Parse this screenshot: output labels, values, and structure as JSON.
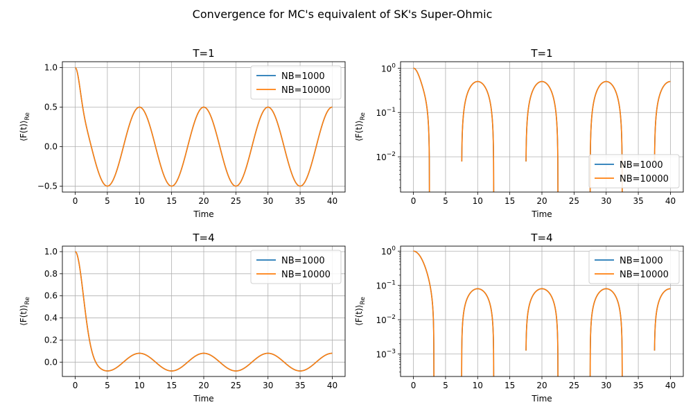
{
  "figure": {
    "suptitle": "Convergence for MC's equivalent of SK's Super-Ohmic"
  },
  "colors": {
    "nb1000": "#1f77b4",
    "nb10000": "#ff7f0e",
    "grid": "#b0b0b0"
  },
  "chart_data": [
    {
      "type": "line",
      "title": "T=1",
      "xlabel": "Time",
      "ylabel": "⟨F(t)⟩_Re",
      "yscale": "linear",
      "xlim": [
        -2,
        42
      ],
      "ylim": [
        -0.575,
        1.075
      ],
      "xticks": [
        0,
        5,
        10,
        15,
        20,
        25,
        30,
        35,
        40
      ],
      "yticks": [
        -0.5,
        0.0,
        0.5,
        1.0
      ],
      "ytick_labels": [
        "−0.5",
        "0.0",
        "0.5",
        "1.0"
      ],
      "grid": true,
      "legend": "top-right",
      "curve": {
        "amplitude": 0.5,
        "baseline": 0.0,
        "decay": 4,
        "period": 10,
        "xmax": 40
      },
      "series": [
        {
          "name": "NB=1000"
        },
        {
          "name": "NB=10000"
        }
      ]
    },
    {
      "type": "line",
      "title": "T=1",
      "xlabel": "Time",
      "ylabel": "⟨F(t)⟩_Re",
      "yscale": "log",
      "xlim": [
        -2,
        42
      ],
      "ylim": [
        0.0016,
        1.4
      ],
      "xticks": [
        0,
        5,
        10,
        15,
        20,
        25,
        30,
        35,
        40
      ],
      "yticks": [
        0.01,
        0.1,
        1
      ],
      "ytick_labels": [
        [
          "10",
          "−2"
        ],
        [
          "10",
          "−1"
        ],
        [
          "10",
          "0"
        ]
      ],
      "grid": true,
      "legend": "lower-right",
      "curve": {
        "amplitude": 0.5,
        "baseline": 0.0,
        "decay": 4,
        "period": 10,
        "xmax": 40
      },
      "series": [
        {
          "name": "NB=1000"
        },
        {
          "name": "NB=10000"
        }
      ]
    },
    {
      "type": "line",
      "title": "T=4",
      "xlabel": "Time",
      "ylabel": "⟨F(t)⟩_Re",
      "yscale": "linear",
      "xlim": [
        -2,
        42
      ],
      "ylim": [
        -0.13,
        1.05
      ],
      "xticks": [
        0,
        5,
        10,
        15,
        20,
        25,
        30,
        35,
        40
      ],
      "yticks": [
        0.0,
        0.2,
        0.4,
        0.6,
        0.8,
        1.0
      ],
      "ytick_labels": [
        "0.0",
        "0.2",
        "0.4",
        "0.6",
        "0.8",
        "1.0"
      ],
      "grid": true,
      "legend": "top-right",
      "curve": {
        "amplitude": 0.08,
        "baseline": 0.0,
        "decay": 1.3,
        "period": 10,
        "xmax": 40
      },
      "series": [
        {
          "name": "NB=1000"
        },
        {
          "name": "NB=10000"
        }
      ]
    },
    {
      "type": "line",
      "title": "T=4",
      "xlabel": "Time",
      "ylabel": "⟨F(t)⟩_Re",
      "yscale": "log",
      "xlim": [
        -2,
        42
      ],
      "ylim": [
        0.00022,
        1.4
      ],
      "xticks": [
        0,
        5,
        10,
        15,
        20,
        25,
        30,
        35,
        40
      ],
      "yticks": [
        0.001,
        0.01,
        0.1,
        1
      ],
      "ytick_labels": [
        [
          "10",
          "−3"
        ],
        [
          "10",
          "−2"
        ],
        [
          "10",
          "−1"
        ],
        [
          "10",
          "0"
        ]
      ],
      "grid": true,
      "legend": "top-right",
      "curve": {
        "amplitude": 0.08,
        "baseline": 0.0,
        "decay": 1.3,
        "period": 10,
        "xmax": 40
      },
      "series": [
        {
          "name": "NB=1000"
        },
        {
          "name": "NB=10000"
        }
      ]
    }
  ]
}
